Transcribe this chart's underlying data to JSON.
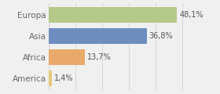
{
  "categories": [
    "America",
    "Africa",
    "Asia",
    "Europa"
  ],
  "values": [
    1.4,
    13.7,
    36.8,
    48.1
  ],
  "labels": [
    "1,4%",
    "13,7%",
    "36,8%",
    "48,1%"
  ],
  "bar_colors": [
    "#e8c97a",
    "#e8a96a",
    "#6e8ec0",
    "#b5c98a"
  ],
  "background_color": "#f0f0f0",
  "xlim": [
    0,
    60
  ],
  "bar_height": 0.75,
  "label_fontsize": 7,
  "tick_fontsize": 7.5,
  "figsize": [
    2.8,
    1.2
  ],
  "dpi": 100
}
